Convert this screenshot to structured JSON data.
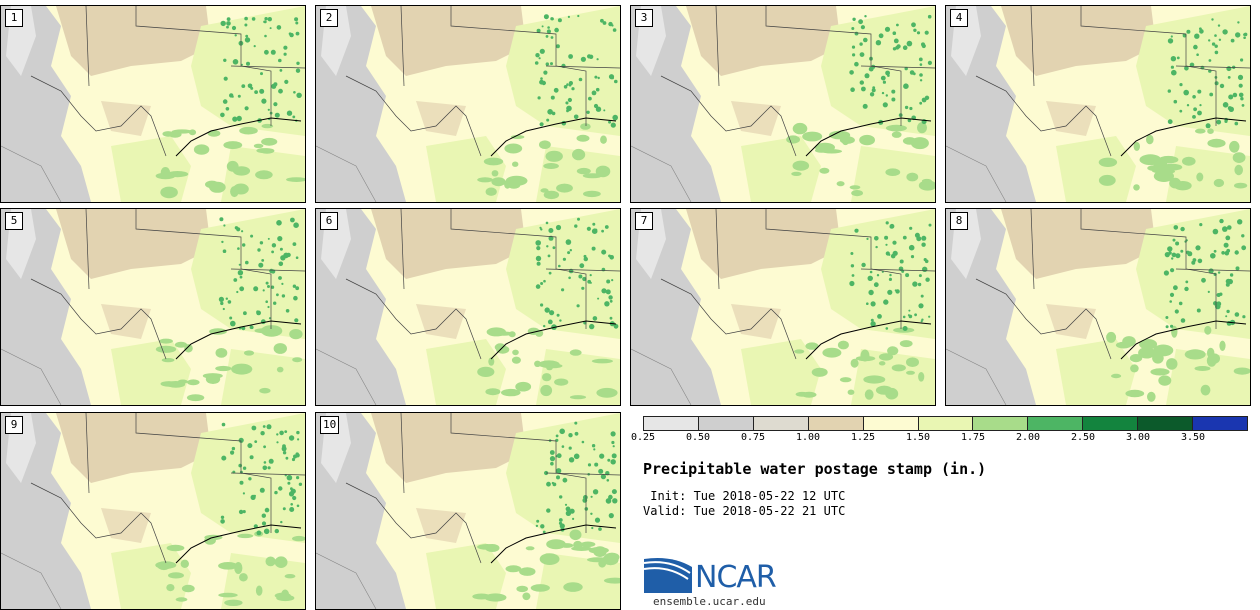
{
  "title": "Precipitable water postage stamp (in.)",
  "init_line": " Init: Tue 2018-05-22 12 UTC",
  "valid_line": "Valid: Tue 2018-05-22 21 UTC",
  "logo_text": "NCAR",
  "url": "ensemble.ucar.edu",
  "panels": [
    {
      "label": "1"
    },
    {
      "label": "2"
    },
    {
      "label": "3"
    },
    {
      "label": "4"
    },
    {
      "label": "5"
    },
    {
      "label": "6"
    },
    {
      "label": "7"
    },
    {
      "label": "8"
    },
    {
      "label": "9"
    },
    {
      "label": "10"
    }
  ],
  "colorbar": {
    "levels": [
      "0.25",
      "0.50",
      "0.75",
      "1.00",
      "1.25",
      "1.50",
      "1.75",
      "2.00",
      "2.50",
      "3.00",
      "3.50"
    ],
    "colors": [
      "#e6e6e6",
      "#cfcfcf",
      "#dedbd0",
      "#e2d3b1",
      "#fdfbd2",
      "#e9f6b3",
      "#a8dc8a",
      "#4db564",
      "#13843e",
      "#0c5a2b",
      "#1a36b0"
    ]
  },
  "colors": {
    "dry_gray": "#cfcfcf",
    "tan": "#e2d3b1",
    "pale_yellow": "#fdfbd2",
    "light_green": "#e9f6b3",
    "green": "#a8dc8a",
    "dark_green": "#4db564"
  }
}
